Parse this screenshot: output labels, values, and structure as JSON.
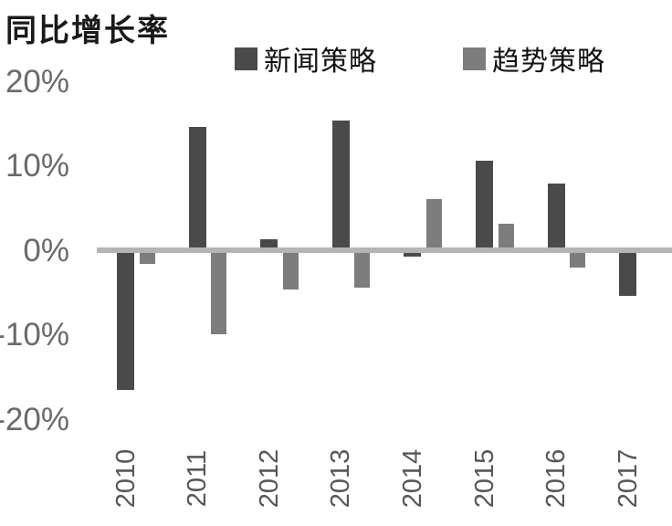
{
  "title": "同比增长率",
  "legend": {
    "items": [
      {
        "key": "news",
        "label": "新闻策略",
        "color": "#4a4a4a"
      },
      {
        "key": "trend",
        "label": "趋势策略",
        "color": "#7d7d7d"
      }
    ]
  },
  "y_axis": {
    "tick_labels": [
      "20%",
      "10%",
      "0%",
      "-10%",
      "-20%"
    ],
    "tick_values": [
      20,
      10,
      0,
      -10,
      -20
    ]
  },
  "x_axis": {
    "labels": [
      "2010",
      "2011",
      "2012",
      "2013",
      "2014",
      "2015",
      "2016",
      "2017"
    ]
  },
  "chart_data": {
    "type": "bar",
    "title": "同比增长率",
    "categories": [
      "2010",
      "2011",
      "2012",
      "2013",
      "2014",
      "2015",
      "2016",
      "2017"
    ],
    "series": [
      {
        "name": "新闻策略",
        "key": "news",
        "color": "#4a4a4a",
        "values": [
          -16.5,
          14.6,
          1.3,
          15.4,
          -0.7,
          10.6,
          7.9,
          -5.4
        ]
      },
      {
        "name": "趋势策略",
        "key": "trend",
        "color": "#7d7d7d",
        "values": [
          -1.6,
          -9.9,
          -4.6,
          -4.4,
          6.1,
          3.2,
          -2.0,
          0
        ]
      }
    ],
    "unit": "%",
    "ylim": [
      -20,
      20
    ],
    "y_tick_step": 10,
    "grid": false,
    "legend_position": "top",
    "x_label_rotation": -90
  },
  "colors": {
    "background": "#ffffff",
    "title_text": "#1a1a1a",
    "y_tick_text": "#6a6a6a",
    "x_label_text": "#575757",
    "axis_line": "#b4b4b4"
  }
}
